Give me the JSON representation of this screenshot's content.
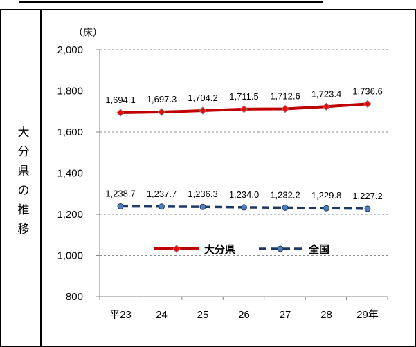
{
  "side_label": "大分県の推移",
  "chart_data": {
    "type": "line",
    "unit_label": "（床）",
    "categories": [
      "平23",
      "24",
      "25",
      "26",
      "27",
      "28",
      "29年"
    ],
    "ylim": [
      800,
      2000
    ],
    "ytick_step": 200,
    "yticks": [
      "800",
      "1,000",
      "1,200",
      "1,400",
      "1,600",
      "1,800",
      "2,000"
    ],
    "grid": true,
    "legend_position": "inside-lower-center",
    "series": [
      {
        "name": "大分県",
        "color": "#c00000",
        "marker_color": "#ff0000",
        "line_style": "solid",
        "marker": "diamond",
        "values": [
          1694.1,
          1697.3,
          1704.2,
          1711.5,
          1712.6,
          1723.4,
          1736.6
        ],
        "labels": [
          "1,694.1",
          "1,697.3",
          "1,704.2",
          "1,711.5",
          "1,712.6",
          "1,723.4",
          "1,736.6"
        ]
      },
      {
        "name": "全国",
        "color": "#1f3864",
        "marker_color": "#4f81bd",
        "line_style": "dashed",
        "marker": "circle",
        "values": [
          1238.7,
          1237.7,
          1236.3,
          1234.0,
          1232.2,
          1229.8,
          1227.2
        ],
        "labels": [
          "1,238.7",
          "1,237.7",
          "1,236.3",
          "1,234.0",
          "1,232.2",
          "1,229.8",
          "1,227.2"
        ]
      }
    ]
  }
}
